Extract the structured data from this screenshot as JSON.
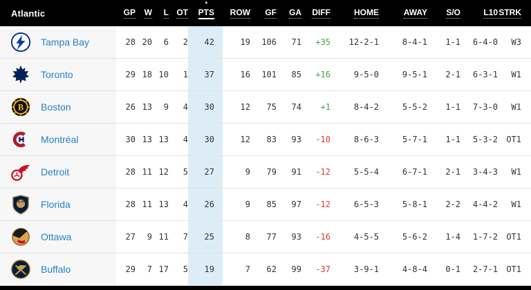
{
  "header": {
    "division": "Atlantic",
    "columns": [
      "GP",
      "W",
      "L",
      "OT",
      "PTS",
      "ROW",
      "GF",
      "GA",
      "DIFF",
      "HOME",
      "AWAY",
      "S/O",
      "L10",
      "STRK"
    ],
    "sorted_column": "PTS",
    "sort_indicator": "▲"
  },
  "colors": {
    "header_bg": "#000000",
    "team_link_blue": "#2682c5",
    "positive_diff_green": "#3fa73f",
    "negative_diff_red": "#e53935",
    "pts_column_highlight": "#ddedf8",
    "team_column_bg": "#f7f7f7"
  },
  "teams": [
    {
      "id": "tbl",
      "logo": "tampa-bay-lightning-logo",
      "name": "Tampa Bay",
      "gp": "28",
      "w": "20",
      "l": "6",
      "ot": "2",
      "pts": "42",
      "row": "19",
      "gf": "106",
      "ga": "71",
      "diff": "+35",
      "home": "12-2-1",
      "away": "8-4-1",
      "so": "1-1",
      "l10": "6-4-0",
      "strk": "W3"
    },
    {
      "id": "tor",
      "logo": "toronto-maple-leafs-logo",
      "name": "Toronto",
      "gp": "29",
      "w": "18",
      "l": "10",
      "ot": "1",
      "pts": "37",
      "row": "16",
      "gf": "101",
      "ga": "85",
      "diff": "+16",
      "home": "9-5-0",
      "away": "9-5-1",
      "so": "2-1",
      "l10": "6-3-1",
      "strk": "W1"
    },
    {
      "id": "bos",
      "logo": "boston-bruins-logo",
      "name": "Boston",
      "gp": "26",
      "w": "13",
      "l": "9",
      "ot": "4",
      "pts": "30",
      "row": "12",
      "gf": "75",
      "ga": "74",
      "diff": "+1",
      "home": "8-4-2",
      "away": "5-5-2",
      "so": "1-1",
      "l10": "7-3-0",
      "strk": "W1"
    },
    {
      "id": "mtl",
      "logo": "montreal-canadiens-logo",
      "name": "Montréal",
      "gp": "30",
      "w": "13",
      "l": "13",
      "ot": "4",
      "pts": "30",
      "row": "12",
      "gf": "83",
      "ga": "93",
      "diff": "-10",
      "home": "8-6-3",
      "away": "5-7-1",
      "so": "1-1",
      "l10": "5-3-2",
      "strk": "OT1"
    },
    {
      "id": "det",
      "logo": "detroit-red-wings-logo",
      "name": "Detroit",
      "gp": "28",
      "w": "11",
      "l": "12",
      "ot": "5",
      "pts": "27",
      "row": "9",
      "gf": "79",
      "ga": "91",
      "diff": "-12",
      "home": "5-5-4",
      "away": "6-7-1",
      "so": "2-1",
      "l10": "3-4-3",
      "strk": "W1"
    },
    {
      "id": "fla",
      "logo": "florida-panthers-logo",
      "name": "Florida",
      "gp": "28",
      "w": "11",
      "l": "13",
      "ot": "4",
      "pts": "26",
      "row": "9",
      "gf": "85",
      "ga": "97",
      "diff": "-12",
      "home": "6-5-3",
      "away": "5-8-1",
      "so": "2-2",
      "l10": "4-4-2",
      "strk": "W1"
    },
    {
      "id": "ott",
      "logo": "ottawa-senators-logo",
      "name": "Ottawa",
      "gp": "27",
      "w": "9",
      "l": "11",
      "ot": "7",
      "pts": "25",
      "row": "8",
      "gf": "77",
      "ga": "93",
      "diff": "-16",
      "home": "4-5-5",
      "away": "5-6-2",
      "so": "1-4",
      "l10": "1-7-2",
      "strk": "OT1"
    },
    {
      "id": "buf",
      "logo": "buffalo-sabres-logo",
      "name": "Buffalo",
      "gp": "29",
      "w": "7",
      "l": "17",
      "ot": "5",
      "pts": "19",
      "row": "7",
      "gf": "62",
      "ga": "99",
      "diff": "-37",
      "home": "3-9-1",
      "away": "4-8-4",
      "so": "0-1",
      "l10": "2-7-1",
      "strk": "OT1"
    }
  ]
}
